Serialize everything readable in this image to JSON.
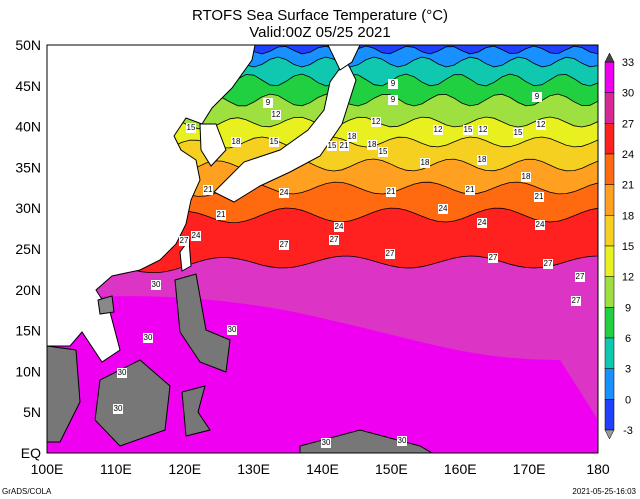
{
  "header": {
    "title": "RTOFS Sea Surface Temperature (°C)",
    "subtitle": "Valid:00Z 05/25 2021"
  },
  "map": {
    "lat_labels": [
      "50N",
      "45N",
      "40N",
      "35N",
      "30N",
      "25N",
      "20N",
      "15N",
      "10N",
      "5N",
      "EQ"
    ],
    "lon_labels": [
      "100E",
      "110E",
      "120E",
      "130E",
      "140E",
      "150E",
      "160E",
      "170E",
      "180"
    ],
    "contour_labels": [
      9,
      12,
      9,
      9,
      12,
      12,
      15,
      12,
      15,
      12,
      9,
      15,
      18,
      15,
      21,
      18,
      15,
      18,
      18,
      18,
      15,
      18,
      21,
      24,
      21,
      21,
      21,
      24,
      24,
      21,
      24,
      27,
      27,
      27,
      24,
      24,
      27,
      27,
      27,
      27,
      27,
      30,
      30,
      30,
      30,
      30,
      30,
      30
    ]
  },
  "colorbar": {
    "labels": [
      33,
      30,
      27,
      24,
      21,
      18,
      15,
      12,
      9,
      6,
      3,
      0,
      -3
    ]
  },
  "footer": {
    "left": "GrADS/COLA",
    "right": "2021-05-25-16:03"
  }
}
